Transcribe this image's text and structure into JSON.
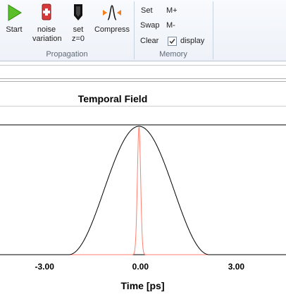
{
  "ribbon": {
    "propagation": {
      "label": "Propagation",
      "buttons": [
        {
          "label": "Start"
        },
        {
          "label": "noise variation"
        },
        {
          "label": "set z=0"
        },
        {
          "label": "Compress"
        }
      ]
    },
    "memory": {
      "label": "Memory",
      "set": "Set",
      "m_plus": "M+",
      "swap": "Swap",
      "m_minus": "M-",
      "clear": "Clear",
      "display_label": "display",
      "display_checked": true
    }
  },
  "chart_data": {
    "type": "line",
    "title": "Temporal Field",
    "xlabel": "Time [ps]",
    "xticks": [
      "-3.00",
      "0.00",
      "3.00"
    ],
    "xlim": [
      -4.35,
      4.6
    ],
    "ylim": [
      0,
      1
    ],
    "series": [
      {
        "color": "#000000",
        "shape": "raised-cosine-squared",
        "center": 0,
        "half_width": 2.2,
        "peak": 1
      },
      {
        "color": "#ff7f6e",
        "shape": "gaussian",
        "center": 0,
        "fwhm": 0.12,
        "peak": 1
      }
    ]
  }
}
